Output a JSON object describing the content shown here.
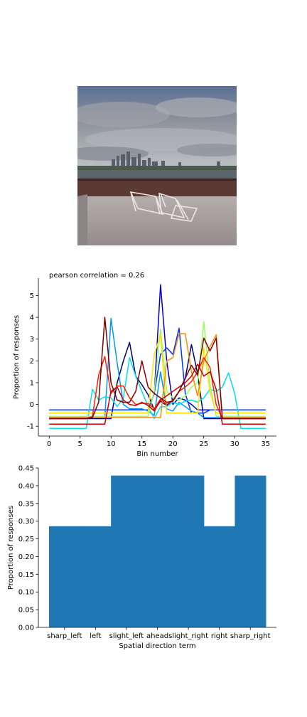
{
  "image": {
    "description_icon": "skyline-photo-icon",
    "sky_color_top": "#5a6f96",
    "sky_color_bottom": "#c9cccf",
    "deck_color": "#a49a9b",
    "wall_color": "#5b3a33"
  },
  "chart_data": [
    {
      "type": "line",
      "title": "pearson correlation = 0.26",
      "xlabel": "Bin number",
      "ylabel": "Proportion of responses",
      "xlim": [
        -1.75,
        36.75
      ],
      "ylim": [
        -1.45,
        5.8
      ],
      "xticks": [
        0,
        5,
        10,
        15,
        20,
        25,
        30,
        35
      ],
      "yticks": [
        -1,
        0,
        1,
        2,
        3,
        4,
        5
      ],
      "grid": false,
      "x": [
        0,
        1,
        2,
        3,
        4,
        5,
        6,
        7,
        8,
        9,
        10,
        11,
        12,
        13,
        14,
        15,
        16,
        17,
        18,
        19,
        20,
        21,
        22,
        23,
        24,
        25,
        26,
        27,
        28,
        29,
        30,
        31,
        32,
        33,
        34,
        35
      ],
      "series": [
        {
          "color": "#00006e",
          "values": [
            -0.65,
            -0.65,
            -0.65,
            -0.65,
            -0.65,
            -0.65,
            -0.65,
            -0.65,
            -0.65,
            -0.65,
            -0.65,
            1.0,
            2.0,
            2.85,
            1.3,
            0.9,
            0.45,
            -0.25,
            0.15,
            -0.05,
            0.2,
            0.6,
            1.2,
            2.75,
            1.4,
            -0.65,
            -0.65,
            -0.65,
            -0.65,
            -0.65,
            -0.65,
            -0.65,
            -0.65,
            -0.65,
            -0.65,
            -0.65
          ]
        },
        {
          "color": "#0000c8",
          "values": [
            -0.25,
            -0.25,
            -0.25,
            -0.25,
            -0.25,
            -0.25,
            -0.25,
            -0.25,
            -0.25,
            -0.25,
            -0.25,
            -0.25,
            -0.25,
            -0.25,
            -0.25,
            -0.25,
            -0.25,
            0.5,
            5.5,
            2.0,
            0.0,
            0.3,
            0.2,
            0.0,
            -0.25,
            -0.25,
            -0.25,
            -0.25,
            -0.25,
            -0.25,
            -0.25,
            -0.25,
            -0.25,
            -0.25,
            -0.25,
            -0.25
          ]
        },
        {
          "color": "#0033ff",
          "values": [
            -0.25,
            -0.25,
            -0.25,
            -0.25,
            -0.25,
            -0.25,
            -0.25,
            -0.25,
            -0.25,
            -0.25,
            -0.25,
            -0.25,
            -0.25,
            -0.25,
            -0.25,
            -0.25,
            -0.25,
            0.5,
            2.3,
            2.6,
            2.3,
            3.5,
            0.5,
            -0.4,
            -0.4,
            -0.4,
            -0.25,
            -0.25,
            -0.25,
            -0.25,
            -0.25,
            -0.25,
            -0.25,
            -0.25,
            -0.25,
            -0.25
          ]
        },
        {
          "color": "#0096ff",
          "values": [
            -0.6,
            -0.6,
            -0.6,
            -0.6,
            -0.6,
            -0.6,
            -0.6,
            -0.6,
            -0.6,
            -0.6,
            3.95,
            1.9,
            0.0,
            -0.2,
            -0.2,
            -0.2,
            -0.3,
            -0.5,
            1.5,
            -0.2,
            -0.3,
            0.1,
            -0.1,
            -0.3,
            -0.4,
            -0.6,
            -0.6,
            -0.6,
            -0.6,
            -0.6,
            -0.6,
            -0.6,
            -0.6,
            -0.6,
            -0.6,
            -0.6
          ]
        },
        {
          "color": "#00e0e8",
          "values": [
            -1.1,
            -1.1,
            -1.1,
            -1.1,
            -1.1,
            -1.1,
            -1.1,
            0.7,
            0.2,
            0.35,
            0.3,
            -0.1,
            0.3,
            2.15,
            1.3,
            0.6,
            -0.1,
            -0.65,
            -0.1,
            -0.1,
            0.1,
            0.0,
            0.15,
            0.2,
            0.1,
            0.3,
            0.7,
            0.6,
            0.8,
            1.45,
            0.5,
            -1.1,
            -1.1,
            -1.1,
            -1.1,
            -1.1
          ]
        },
        {
          "color": "#96ff60",
          "values": [
            -0.55,
            -0.55,
            -0.55,
            -0.55,
            -0.55,
            -0.55,
            -0.55,
            -0.55,
            -0.55,
            -0.55,
            -0.55,
            -0.55,
            -0.55,
            -0.55,
            -0.55,
            -0.55,
            -0.55,
            0.6,
            3.45,
            0.6,
            0.3,
            0.2,
            0.4,
            0.8,
            1.0,
            3.8,
            0.9,
            -0.55,
            -0.55,
            -0.55,
            -0.55,
            -0.55,
            -0.55,
            -0.55,
            -0.55,
            -0.55
          ]
        },
        {
          "color": "#ffe000",
          "values": [
            -0.4,
            -0.4,
            -0.4,
            -0.4,
            -0.4,
            -0.4,
            -0.4,
            -0.4,
            -0.4,
            -0.4,
            -0.4,
            -0.4,
            -0.4,
            -0.4,
            -0.4,
            -0.4,
            -0.4,
            2.3,
            3.2,
            -0.4,
            -0.4,
            -0.4,
            -0.4,
            -0.4,
            -0.4,
            2.6,
            0.6,
            -0.4,
            -0.4,
            -0.4,
            -0.4,
            -0.4,
            -0.4,
            -0.4,
            -0.4,
            -0.4
          ]
        },
        {
          "color": "#ff8a00",
          "values": [
            -0.6,
            -0.6,
            -0.6,
            -0.6,
            -0.6,
            -0.6,
            -0.6,
            -0.6,
            -0.6,
            -0.6,
            -0.6,
            -0.6,
            -0.6,
            -0.6,
            -0.6,
            -0.6,
            -0.6,
            -0.6,
            -0.6,
            2.0,
            2.15,
            3.25,
            3.25,
            1.5,
            0.4,
            2.0,
            2.65,
            3.2,
            -0.6,
            -0.6,
            -0.6,
            -0.6,
            -0.6,
            -0.6,
            -0.6,
            -0.6
          ]
        },
        {
          "color": "#ff2000",
          "values": [
            -0.65,
            -0.65,
            -0.65,
            -0.65,
            -0.65,
            -0.65,
            -0.65,
            -0.55,
            1.35,
            2.2,
            0.5,
            0.85,
            0.85,
            0.3,
            0.0,
            0.05,
            0.05,
            -0.2,
            0.25,
            0.0,
            0.2,
            0.6,
            0.8,
            1.05,
            1.5,
            2.15,
            1.7,
            0.0,
            -0.65,
            -0.65,
            -0.65,
            -0.65,
            -0.65,
            -0.65,
            -0.65,
            -0.65
          ]
        },
        {
          "color": "#c80000",
          "values": [
            -0.9,
            -0.9,
            -0.9,
            -0.9,
            -0.9,
            -0.9,
            -0.9,
            -0.9,
            -0.9,
            -0.9,
            0.6,
            0.8,
            0.2,
            0.0,
            -0.05,
            0.1,
            -0.05,
            -0.3,
            0.2,
            0.4,
            0.6,
            0.8,
            1.0,
            1.3,
            1.85,
            1.3,
            1.5,
            0.7,
            -0.9,
            -0.9,
            -0.9,
            -0.9,
            -0.9,
            -0.9,
            -0.9,
            -0.9
          ]
        },
        {
          "color": "#800000",
          "values": [
            -0.65,
            -0.65,
            -0.65,
            -0.65,
            -0.65,
            -0.65,
            -0.65,
            -0.6,
            0.1,
            4.0,
            1.0,
            0.2,
            0.1,
            0.1,
            0.6,
            2.0,
            0.8,
            0.5,
            0.3,
            0.1,
            0.15,
            0.6,
            1.2,
            1.8,
            1.35,
            3.05,
            2.45,
            3.05,
            -0.65,
            -0.65,
            -0.65,
            -0.65,
            -0.65,
            -0.65,
            -0.65,
            -0.65
          ]
        }
      ]
    },
    {
      "type": "bar",
      "xlabel": "Spatial direction term",
      "ylabel": "Proportion of responses",
      "ylim": [
        0.0,
        0.45
      ],
      "yticks": [
        "0.00",
        "0.05",
        "0.10",
        "0.15",
        "0.20",
        "0.25",
        "0.30",
        "0.35",
        "0.40",
        "0.45"
      ],
      "categories": [
        "sharp_left",
        "left",
        "slight_left",
        "ahead",
        "slight_right",
        "right",
        "sharp_right"
      ],
      "values": [
        0.2857,
        0.2857,
        0.4286,
        0.4286,
        0.4286,
        0.2857,
        0.4286
      ],
      "color": "#1f77b4"
    }
  ]
}
